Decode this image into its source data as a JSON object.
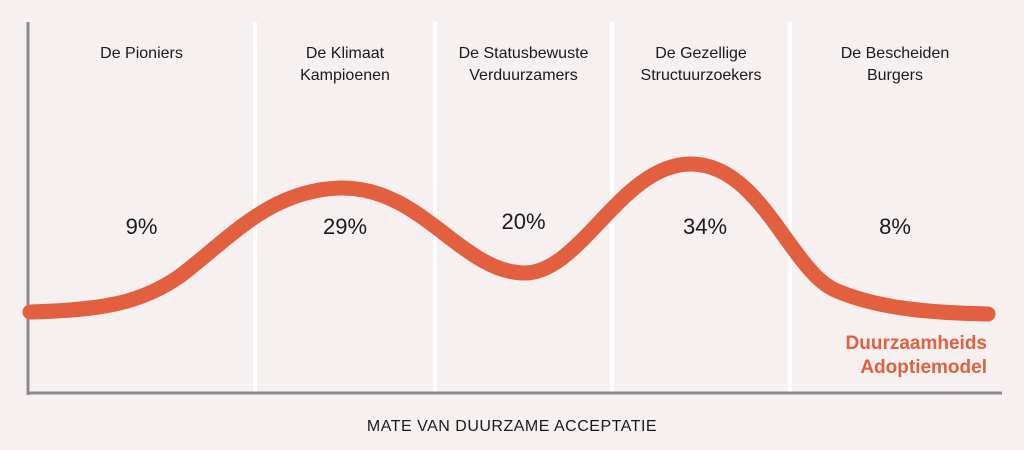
{
  "chart_data": {
    "type": "line",
    "title": "",
    "xlabel": "MATE VAN DUURZAME ACCEPTATIE",
    "ylabel": "",
    "segments": [
      {
        "name": [
          "De Pioniers"
        ],
        "value": "9%"
      },
      {
        "name": [
          "De Klimaat",
          "Kampioenen"
        ],
        "value": "29%"
      },
      {
        "name": [
          "De Statusbewuste",
          "Verduurzamers"
        ],
        "value": "20%"
      },
      {
        "name": [
          "De Gezellige",
          "Structuurzoekers"
        ],
        "value": "34%"
      },
      {
        "name": [
          "De Bescheiden",
          "Burgers"
        ],
        "value": "8%"
      }
    ],
    "curve_label": [
      "Duurzaamheids",
      "Adoptiemodel"
    ],
    "grid": true,
    "colors": {
      "curve": "#e2603f",
      "background": "#f6f0f0",
      "gridline": "#ffffff",
      "axis": "#8a8a8a",
      "text": "#1a1a1a"
    }
  }
}
